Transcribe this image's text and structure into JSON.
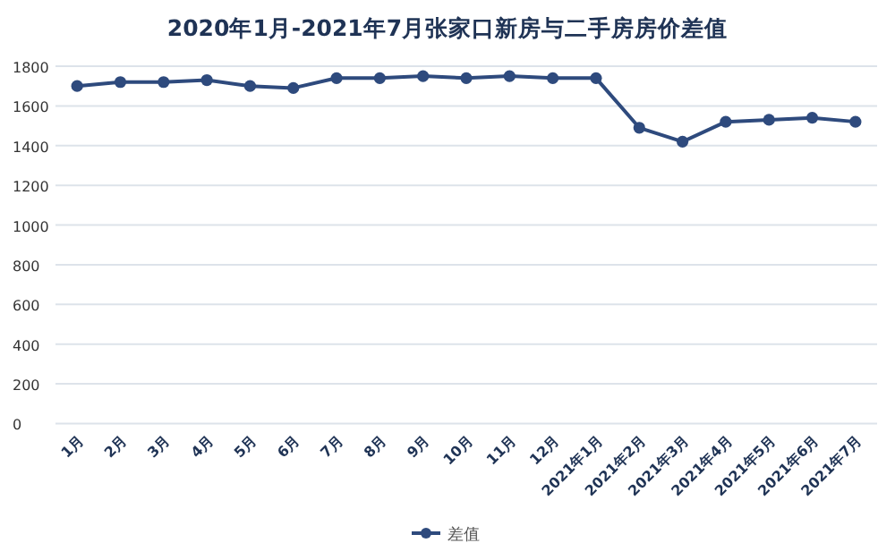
{
  "chart_data": {
    "type": "line",
    "title": "2020年1月-2021年7月张家口新房与二手房房价差值",
    "categories": [
      "1月",
      "2月",
      "3月",
      "4月",
      "5月",
      "6月",
      "7月",
      "8月",
      "9月",
      "10月",
      "11月",
      "12月",
      "2021年1月",
      "2021年2月",
      "2021年3月",
      "2021年4月",
      "2021年5月",
      "2021年6月",
      "2021年7月"
    ],
    "series": [
      {
        "name": "差值",
        "color": "#2e4a7d",
        "values": [
          1700,
          1720,
          1720,
          1730,
          1700,
          1690,
          1740,
          1740,
          1750,
          1740,
          1750,
          1740,
          1740,
          1490,
          1420,
          1520,
          1530,
          1540,
          1520
        ]
      }
    ],
    "ylim": [
      0,
      1800
    ],
    "yticks": [
      0,
      200,
      400,
      600,
      800,
      1000,
      1200,
      1400,
      1600,
      1800
    ],
    "grid": "y",
    "legend": "bottom",
    "marker": "circle",
    "line_style": "solid"
  }
}
